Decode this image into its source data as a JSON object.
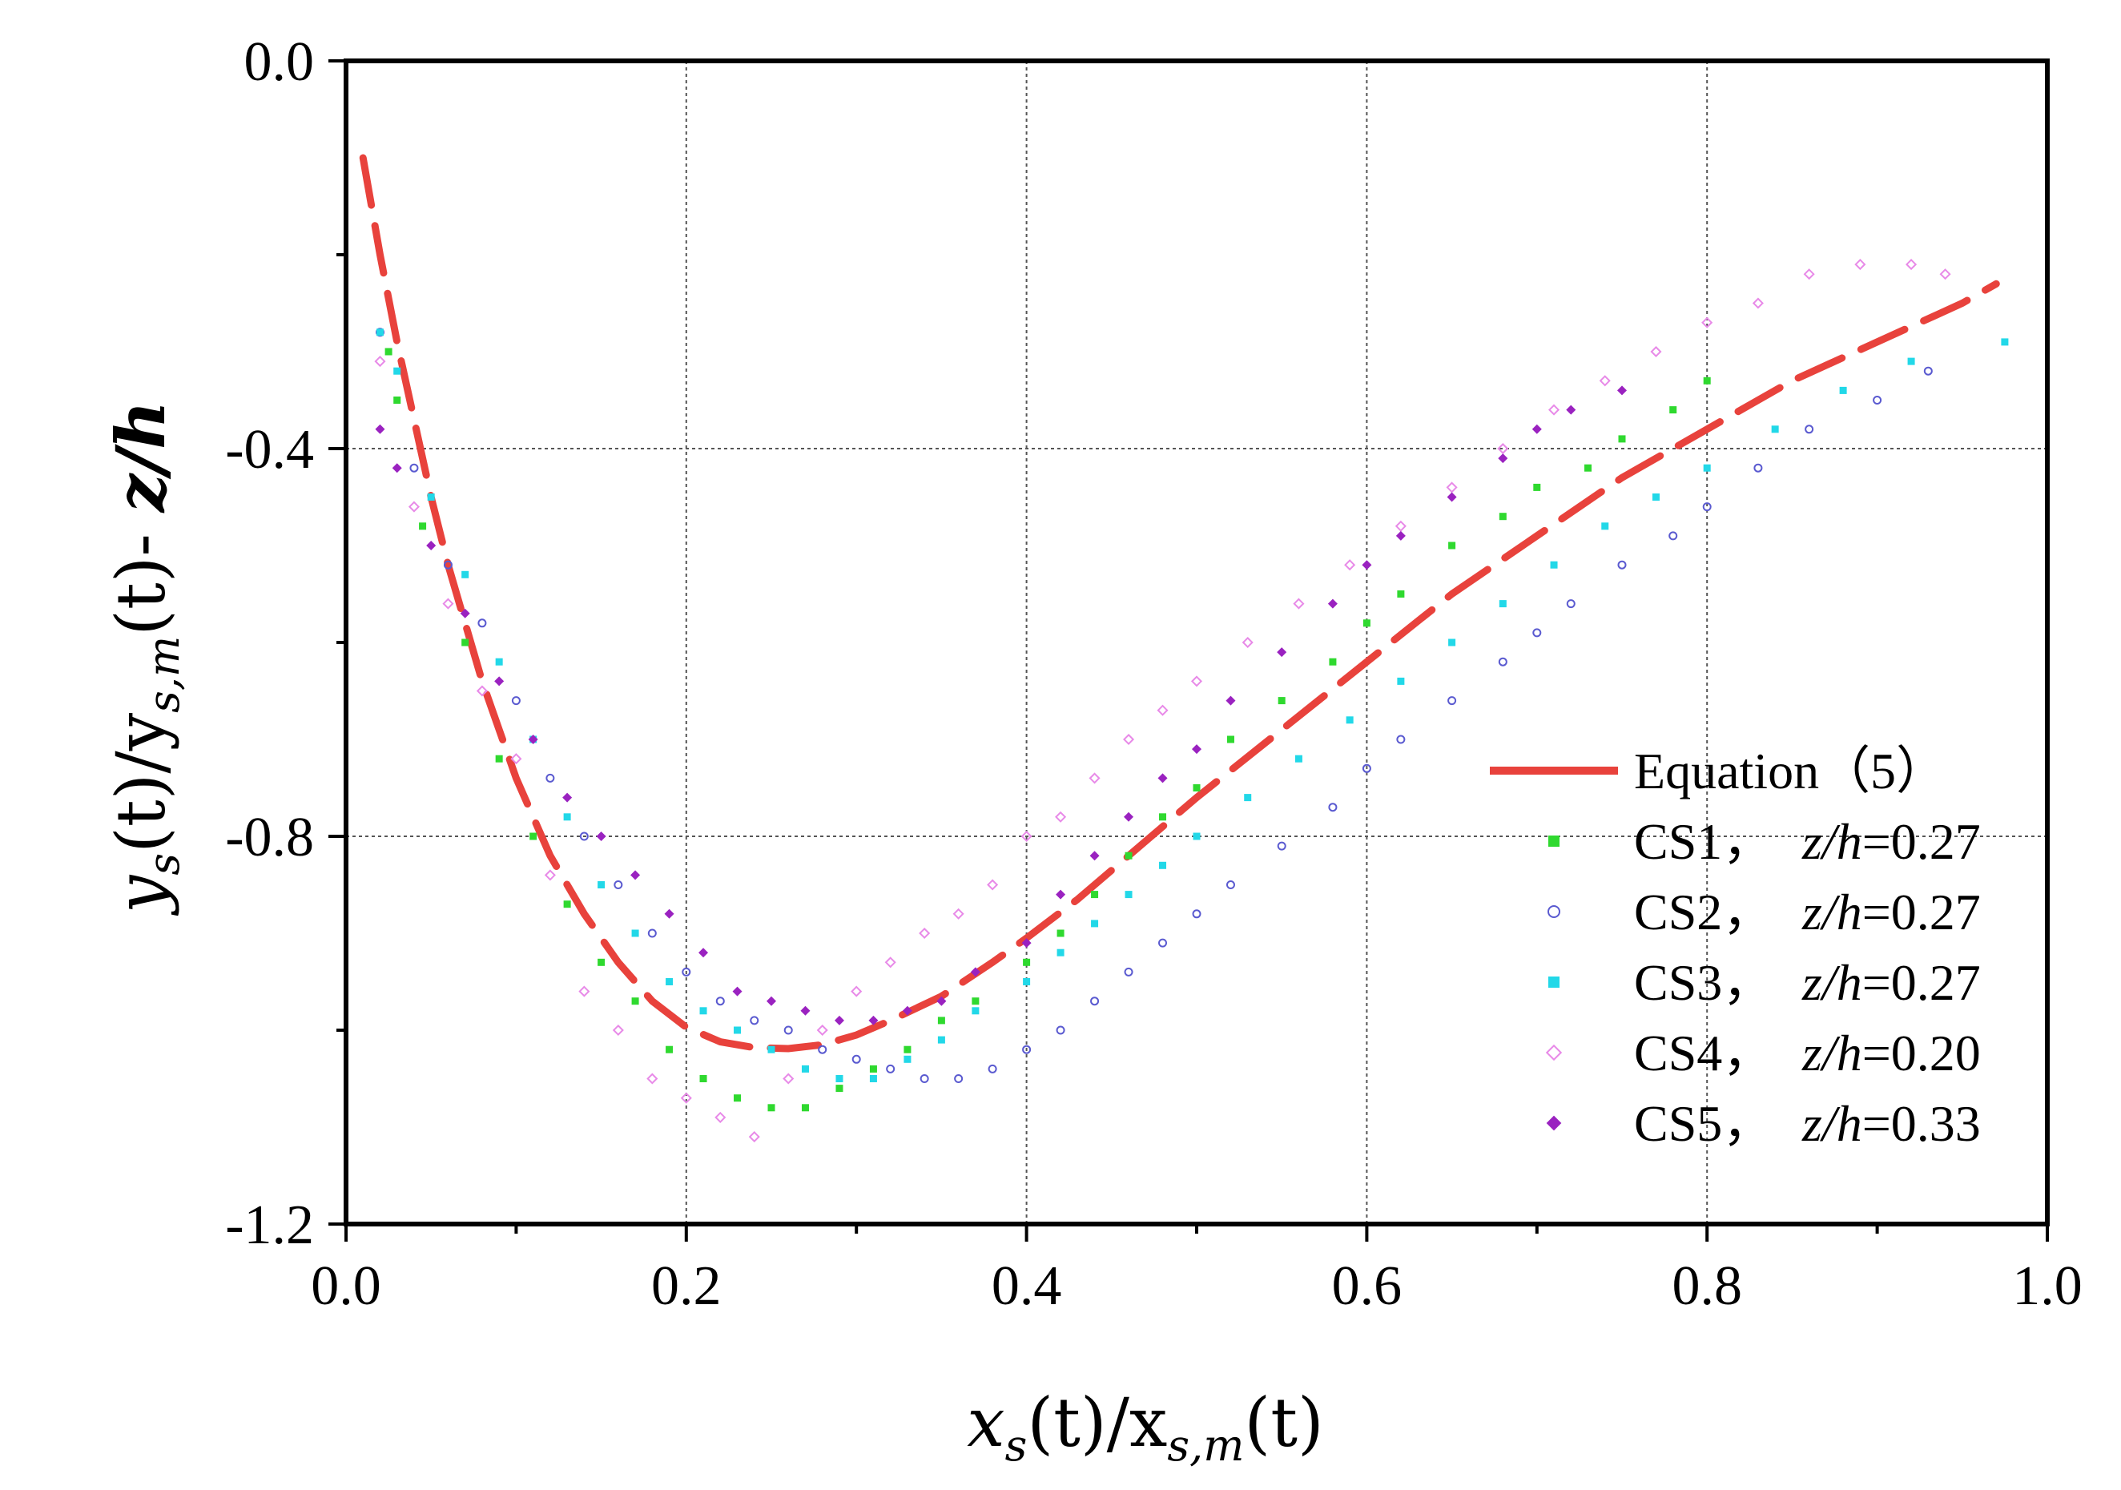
{
  "chart_data": {
    "type": "scatter",
    "title": "",
    "xlabel": "x_s(t)/x_s,m(t)",
    "ylabel": "y_s(t)/y_s,m(t)- z/h",
    "xlim": [
      0.0,
      1.0
    ],
    "ylim": [
      -1.2,
      0.0
    ],
    "xticks": [
      0.0,
      0.2,
      0.4,
      0.6,
      0.8,
      1.0
    ],
    "xtick_labels": [
      "0.0",
      "0.2",
      "0.4",
      "0.6",
      "0.8",
      "1.0"
    ],
    "yticks": [
      0.0,
      -0.4,
      -0.8,
      -1.2
    ],
    "ytick_labels": [
      "0.0",
      "-0.4",
      "-0.8",
      "-1.2"
    ],
    "grid": true,
    "legend_position": "bottom-right",
    "series": [
      {
        "name": "Equation（5）",
        "kind": "line",
        "color": "#e8423c",
        "x": [
          0.01,
          0.02,
          0.03,
          0.04,
          0.05,
          0.06,
          0.07,
          0.08,
          0.09,
          0.1,
          0.12,
          0.14,
          0.16,
          0.18,
          0.2,
          0.22,
          0.24,
          0.26,
          0.28,
          0.3,
          0.32,
          0.35,
          0.38,
          0.4,
          0.43,
          0.46,
          0.5,
          0.55,
          0.6,
          0.65,
          0.7,
          0.75,
          0.8,
          0.85,
          0.9,
          0.95,
          0.97
        ],
        "y": [
          -0.1,
          -0.2,
          -0.29,
          -0.37,
          -0.45,
          -0.52,
          -0.58,
          -0.64,
          -0.69,
          -0.74,
          -0.82,
          -0.88,
          -0.93,
          -0.97,
          -0.997,
          -1.012,
          -1.018,
          -1.019,
          -1.015,
          -1.005,
          -0.99,
          -0.965,
          -0.93,
          -0.905,
          -0.865,
          -0.82,
          -0.76,
          -0.69,
          -0.62,
          -0.55,
          -0.49,
          -0.43,
          -0.38,
          -0.33,
          -0.29,
          -0.25,
          -0.23
        ]
      },
      {
        "name": "CS1, z/h=0.27",
        "legend_label": "CS1，",
        "legend_suffix_z": "z/h",
        "legend_value": "=0.27",
        "kind": "scatter",
        "marker": "filled-square",
        "color": "#2fd92f",
        "x": [
          0.025,
          0.03,
          0.045,
          0.07,
          0.09,
          0.11,
          0.13,
          0.15,
          0.17,
          0.19,
          0.21,
          0.23,
          0.25,
          0.27,
          0.29,
          0.31,
          0.33,
          0.35,
          0.37,
          0.4,
          0.42,
          0.44,
          0.46,
          0.48,
          0.5,
          0.52,
          0.55,
          0.58,
          0.6,
          0.62,
          0.65,
          0.68,
          0.7,
          0.73,
          0.75,
          0.78,
          0.8
        ],
        "y": [
          -0.3,
          -0.35,
          -0.48,
          -0.6,
          -0.72,
          -0.8,
          -0.87,
          -0.93,
          -0.97,
          -1.02,
          -1.05,
          -1.07,
          -1.08,
          -1.08,
          -1.06,
          -1.04,
          -1.02,
          -0.99,
          -0.97,
          -0.93,
          -0.9,
          -0.86,
          -0.82,
          -0.78,
          -0.75,
          -0.7,
          -0.66,
          -0.62,
          -0.58,
          -0.55,
          -0.5,
          -0.47,
          -0.44,
          -0.42,
          -0.39,
          -0.36,
          -0.33
        ]
      },
      {
        "name": "CS2, z/h=0.27",
        "legend_label": "CS2，",
        "legend_suffix_z": "z/h",
        "legend_value": "=0.27",
        "kind": "scatter",
        "marker": "open-circle",
        "color": "#5a5ad0",
        "x": [
          0.02,
          0.04,
          0.06,
          0.08,
          0.1,
          0.12,
          0.14,
          0.16,
          0.18,
          0.2,
          0.22,
          0.24,
          0.26,
          0.28,
          0.3,
          0.32,
          0.34,
          0.36,
          0.38,
          0.4,
          0.42,
          0.44,
          0.46,
          0.48,
          0.5,
          0.52,
          0.55,
          0.58,
          0.6,
          0.62,
          0.65,
          0.68,
          0.7,
          0.72,
          0.75,
          0.78,
          0.8,
          0.83,
          0.86,
          0.9,
          0.93
        ],
        "y": [
          -0.28,
          -0.42,
          -0.52,
          -0.58,
          -0.66,
          -0.74,
          -0.8,
          -0.85,
          -0.9,
          -0.94,
          -0.97,
          -0.99,
          -1.0,
          -1.02,
          -1.03,
          -1.04,
          -1.05,
          -1.05,
          -1.04,
          -1.02,
          -1.0,
          -0.97,
          -0.94,
          -0.91,
          -0.88,
          -0.85,
          -0.81,
          -0.77,
          -0.73,
          -0.7,
          -0.66,
          -0.62,
          -0.59,
          -0.56,
          -0.52,
          -0.49,
          -0.46,
          -0.42,
          -0.38,
          -0.35,
          -0.32
        ]
      },
      {
        "name": "CS3, z/h=0.27",
        "legend_label": "CS3，",
        "legend_suffix_z": "z/h",
        "legend_value": "=0.27",
        "kind": "scatter",
        "marker": "filled-square",
        "color": "#22d8e8",
        "x": [
          0.02,
          0.03,
          0.05,
          0.07,
          0.09,
          0.11,
          0.13,
          0.15,
          0.17,
          0.19,
          0.21,
          0.23,
          0.25,
          0.27,
          0.29,
          0.31,
          0.33,
          0.35,
          0.37,
          0.4,
          0.42,
          0.44,
          0.46,
          0.48,
          0.5,
          0.53,
          0.56,
          0.59,
          0.62,
          0.65,
          0.68,
          0.71,
          0.74,
          0.77,
          0.8,
          0.84,
          0.88,
          0.92,
          0.975
        ],
        "y": [
          -0.28,
          -0.32,
          -0.45,
          -0.53,
          -0.62,
          -0.7,
          -0.78,
          -0.85,
          -0.9,
          -0.95,
          -0.98,
          -1.0,
          -1.02,
          -1.04,
          -1.05,
          -1.05,
          -1.03,
          -1.01,
          -0.98,
          -0.95,
          -0.92,
          -0.89,
          -0.86,
          -0.83,
          -0.8,
          -0.76,
          -0.72,
          -0.68,
          -0.64,
          -0.6,
          -0.56,
          -0.52,
          -0.48,
          -0.45,
          -0.42,
          -0.38,
          -0.34,
          -0.31,
          -0.29
        ]
      },
      {
        "name": "CS4, z/h=0.20",
        "legend_label": "CS4，",
        "legend_suffix_z": "z/h",
        "legend_value": "=0.20",
        "kind": "scatter",
        "marker": "open-diamond",
        "color": "#e88ae8",
        "x": [
          0.02,
          0.04,
          0.06,
          0.08,
          0.1,
          0.12,
          0.14,
          0.16,
          0.18,
          0.2,
          0.22,
          0.24,
          0.26,
          0.28,
          0.3,
          0.32,
          0.34,
          0.36,
          0.38,
          0.4,
          0.42,
          0.44,
          0.46,
          0.48,
          0.5,
          0.53,
          0.56,
          0.59,
          0.62,
          0.65,
          0.68,
          0.71,
          0.74,
          0.77,
          0.8,
          0.83,
          0.86,
          0.89,
          0.92,
          0.94
        ],
        "y": [
          -0.31,
          -0.46,
          -0.56,
          -0.65,
          -0.72,
          -0.84,
          -0.96,
          -1.0,
          -1.05,
          -1.07,
          -1.09,
          -1.11,
          -1.05,
          -1.0,
          -0.96,
          -0.93,
          -0.9,
          -0.88,
          -0.85,
          -0.8,
          -0.78,
          -0.74,
          -0.7,
          -0.67,
          -0.64,
          -0.6,
          -0.56,
          -0.52,
          -0.48,
          -0.44,
          -0.4,
          -0.36,
          -0.33,
          -0.3,
          -0.27,
          -0.25,
          -0.22,
          -0.21,
          -0.21,
          -0.22
        ]
      },
      {
        "name": "CS5, z/h=0.33",
        "legend_label": "CS5，",
        "legend_suffix_z": "z/h",
        "legend_value": "=0.33",
        "kind": "scatter",
        "marker": "filled-diamond",
        "color": "#9a22c0",
        "x": [
          0.02,
          0.03,
          0.05,
          0.07,
          0.09,
          0.11,
          0.13,
          0.15,
          0.17,
          0.19,
          0.21,
          0.23,
          0.25,
          0.27,
          0.29,
          0.31,
          0.33,
          0.35,
          0.37,
          0.4,
          0.42,
          0.44,
          0.46,
          0.48,
          0.5,
          0.52,
          0.55,
          0.58,
          0.6,
          0.62,
          0.65,
          0.68,
          0.7,
          0.72,
          0.75
        ],
        "y": [
          -0.38,
          -0.42,
          -0.5,
          -0.57,
          -0.64,
          -0.7,
          -0.76,
          -0.8,
          -0.84,
          -0.88,
          -0.92,
          -0.96,
          -0.97,
          -0.98,
          -0.99,
          -0.99,
          -0.98,
          -0.97,
          -0.94,
          -0.91,
          -0.86,
          -0.82,
          -0.78,
          -0.74,
          -0.71,
          -0.66,
          -0.61,
          -0.56,
          -0.52,
          -0.49,
          -0.45,
          -0.41,
          -0.38,
          -0.36,
          -0.34
        ]
      }
    ]
  }
}
